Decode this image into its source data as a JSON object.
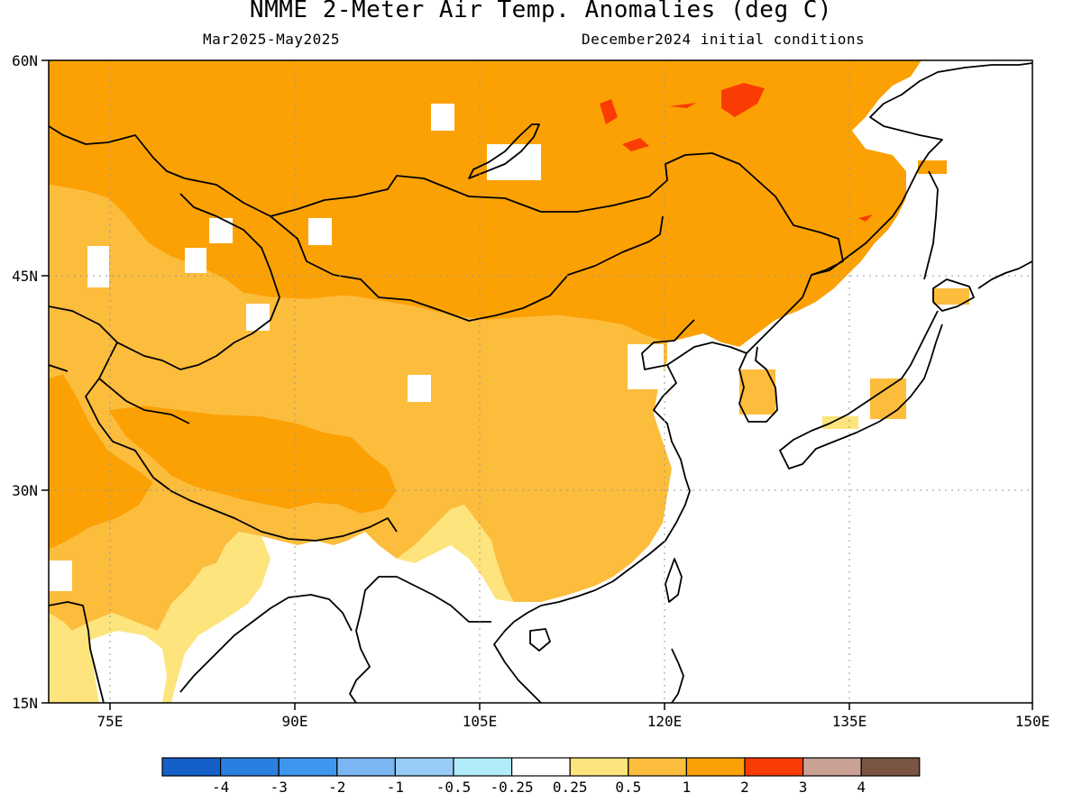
{
  "header": {
    "title": "NMME 2-Meter Air Temp. Anomalies (deg C)",
    "period": "Mar2025-May2025",
    "initial_conditions": "December2024 initial conditions"
  },
  "map": {
    "region": "East and Central Asia",
    "lon_range": [
      70,
      150
    ],
    "lat_range": [
      15,
      60
    ],
    "lon_ticks": [
      "75E",
      "90E",
      "105E",
      "120E",
      "135E",
      "150E"
    ],
    "lat_ticks": [
      "60N",
      "45N",
      "30N",
      "15N"
    ],
    "grid": "dotted",
    "anomaly_pattern": [
      {
        "area": "Siberia, Mongolia, Northeast China",
        "category": "1 to 2"
      },
      {
        "area": "Central Asia west edge",
        "category": "1 to 2"
      },
      {
        "area": "Tibetan Plateau",
        "category": "1 to 2"
      },
      {
        "area": "Xinjiang, Northwest and Central China",
        "category": "0.5 to 1"
      },
      {
        "area": "Southern China",
        "category": "0.25 to 0.5"
      },
      {
        "area": "Indochina, Japan, ocean",
        "category": "-0.25 to 0.25"
      },
      {
        "area": "Lake Baikal region",
        "category": "2 to 3"
      }
    ]
  },
  "colorbar": {
    "labels": [
      "-4",
      "-3",
      "-2",
      "-1",
      "-0.5",
      "-0.25",
      "0.25",
      "0.5",
      "1",
      "2",
      "3",
      "4"
    ],
    "colors": [
      "#1560c8",
      "#2a80e0",
      "#3f96ee",
      "#7ab6f2",
      "#98ccf6",
      "#b2ecfb",
      "#ffffff",
      "#fde47c",
      "#fcbc3c",
      "#fba104",
      "#fa3c04",
      "#caa195",
      "#7a5543"
    ]
  }
}
